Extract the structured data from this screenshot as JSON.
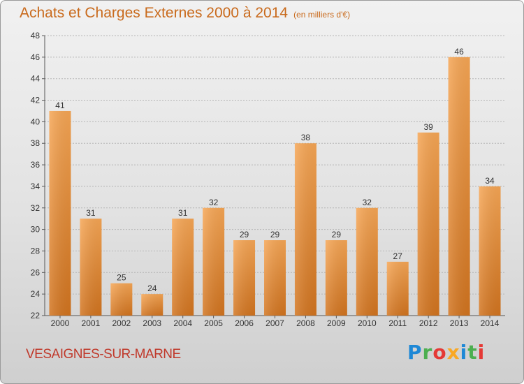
{
  "header": {
    "title": "Achats et Charges Externes 2000 à 2014",
    "unit": "(en milliers d'€)"
  },
  "footer": {
    "commune": "VESAIGNES-SUR-MARNE",
    "brand": "Proxiti"
  },
  "chart_data": {
    "type": "bar",
    "title": "Achats et Charges Externes 2000 à 2014",
    "subtitle": "(en milliers d'€)",
    "categories": [
      "2000",
      "2001",
      "2002",
      "2003",
      "2004",
      "2005",
      "2006",
      "2007",
      "2008",
      "2009",
      "2010",
      "2011",
      "2012",
      "2013",
      "2014"
    ],
    "values": [
      41,
      31,
      25,
      24,
      31,
      32,
      29,
      29,
      38,
      29,
      32,
      27,
      39,
      46,
      34
    ],
    "ylim": [
      22,
      48
    ],
    "yticks": [
      22,
      24,
      26,
      28,
      30,
      32,
      34,
      36,
      38,
      40,
      42,
      44,
      46,
      48
    ],
    "grid": true,
    "bar_color": "#f0903a"
  }
}
